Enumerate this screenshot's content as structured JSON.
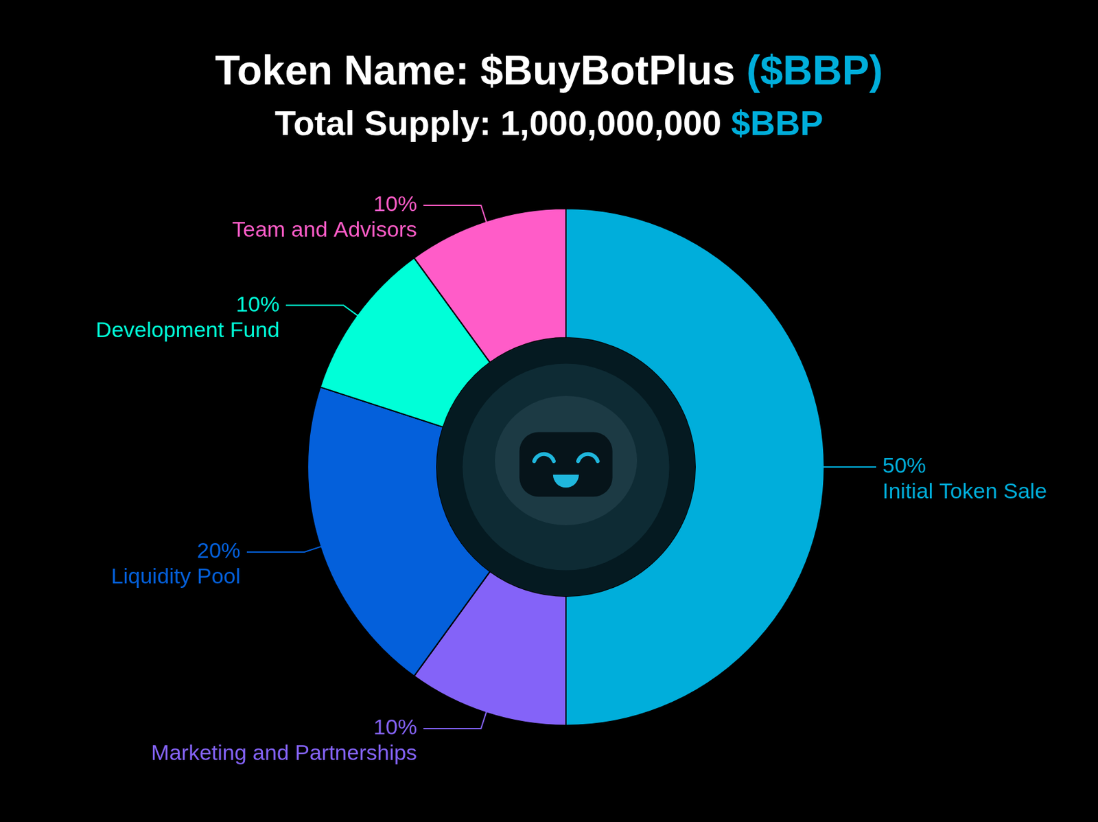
{
  "chart_data": {
    "type": "doughnut",
    "title": "Token Name: $BuyBotPlus ($BBP)",
    "subtitle": "Total Supply: 1,000,000,000 $BBP",
    "categories": [
      "Initial Token Sale",
      "Marketing and Partnerships",
      "Liquidity Pool",
      "Development Fund",
      "Team and Advisors"
    ],
    "values": [
      50,
      10,
      20,
      10,
      10
    ],
    "value_labels": [
      "50%",
      "10%",
      "20%",
      "10%",
      "10%"
    ],
    "colors": [
      "#00aedb",
      "#8463f8",
      "#0460db",
      "#00ffd8",
      "#ff5cc8"
    ],
    "data_labels": true
  }
}
